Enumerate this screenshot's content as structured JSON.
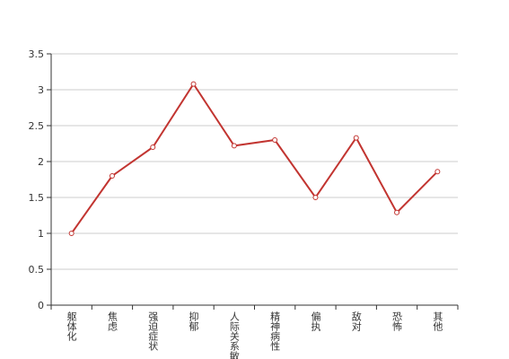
{
  "chart_data": {
    "type": "line",
    "categories": [
      "躯体化",
      "焦虑",
      "强迫症状",
      "抑郁",
      "人际关系敏感",
      "精神病性",
      "偏执",
      "敌对",
      "恐怖",
      "其他"
    ],
    "series": [
      {
        "color": "#c23531",
        "values": [
          1,
          1.8,
          2.2,
          3.08,
          2.22,
          2.3,
          1.5,
          2.33,
          1.29,
          1.86
        ]
      }
    ],
    "ylim": [
      0,
      3.5
    ],
    "yticks": [
      0,
      0.5,
      1,
      1.5,
      2,
      2.5,
      3,
      3.5
    ],
    "grid": true
  }
}
